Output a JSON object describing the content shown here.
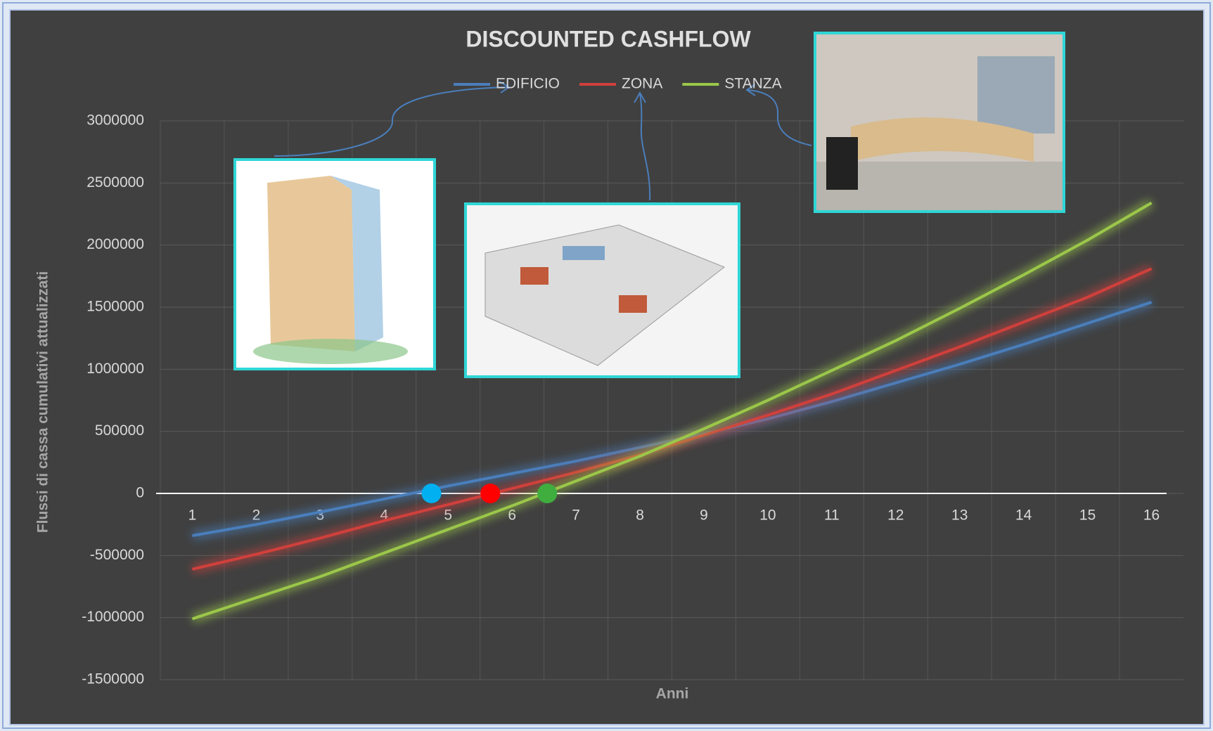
{
  "chart_data": {
    "type": "line",
    "title": "DISCOUNTED CASHFLOW",
    "x": [
      1,
      2,
      3,
      4,
      5,
      6,
      7,
      8,
      9,
      10,
      11,
      12,
      13,
      14,
      15,
      16
    ],
    "xlim": [
      0.5,
      16.5
    ],
    "xticks": [
      1,
      2,
      3,
      4,
      5,
      6,
      7,
      8,
      9,
      10,
      11,
      12,
      13,
      14,
      15,
      16
    ],
    "ylim": [
      -1500000,
      3000000
    ],
    "yticks": [
      -1500000,
      -1000000,
      -500000,
      0,
      500000,
      1000000,
      1500000,
      2000000,
      2500000,
      3000000
    ],
    "x_label": "Anni",
    "y_label": "Flussi di cassa cumulativi attualizzati",
    "grid": true,
    "series": [
      {
        "name": "EDIFICIO",
        "color": "#4a7ebb",
        "values": [
          -340000,
          -250000,
          -150000,
          -45000,
          60000,
          160000,
          260000,
          370000,
          480000,
          600000,
          740000,
          890000,
          1040000,
          1200000,
          1370000,
          1540000
        ]
      },
      {
        "name": "ZONA",
        "color": "#d0403c",
        "values": [
          -610000,
          -490000,
          -360000,
          -220000,
          -90000,
          40000,
          170000,
          310000,
          470000,
          630000,
          800000,
          990000,
          1180000,
          1380000,
          1580000,
          1810000
        ]
      },
      {
        "name": "STANZA",
        "color": "#9bc74a",
        "values": [
          -1010000,
          -840000,
          -670000,
          -480000,
          -290000,
          -100000,
          100000,
          300000,
          520000,
          750000,
          990000,
          1230000,
          1490000,
          1760000,
          2040000,
          2340000
        ]
      }
    ],
    "markers": [
      {
        "x": 4.74,
        "y": 0,
        "color": "#00b0f0"
      },
      {
        "x": 5.66,
        "y": 0,
        "color": "#ff0000"
      },
      {
        "x": 6.55,
        "y": 0,
        "color": "#3fae3f"
      }
    ]
  }
}
